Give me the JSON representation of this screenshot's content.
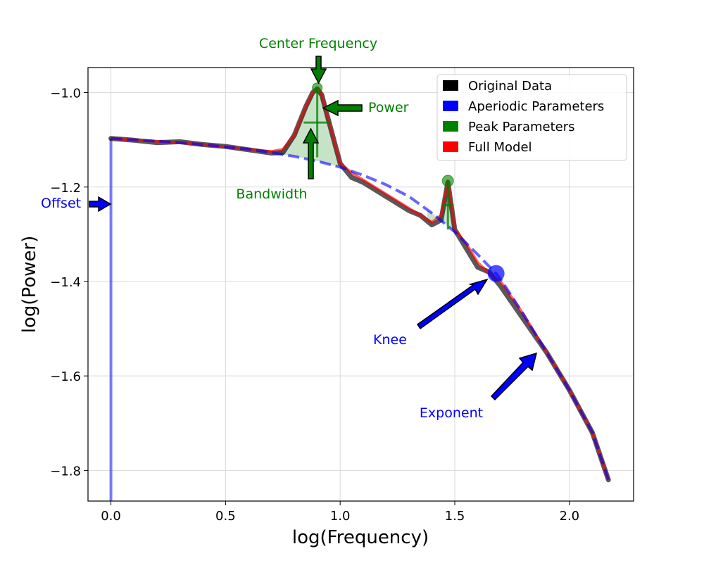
{
  "chart_data": {
    "type": "line",
    "xlabel": "log(Frequency)",
    "ylabel": "log(Power)",
    "xlim": [
      -0.1,
      2.28
    ],
    "ylim": [
      -1.865,
      -0.947
    ],
    "x_ticks": [
      0.0,
      0.5,
      1.0,
      1.5,
      2.0
    ],
    "y_ticks": [
      -1.0,
      -1.2,
      -1.4,
      -1.6,
      -1.8
    ],
    "x_tick_labels": [
      "0.0",
      "0.5",
      "1.0",
      "1.5",
      "2.0"
    ],
    "y_tick_labels": [
      "−1.0",
      "−1.2",
      "−1.4",
      "−1.6",
      "−1.8"
    ],
    "grid": true,
    "legend_position": "top-right",
    "legend": [
      {
        "label": "Original Data",
        "color": "#000000"
      },
      {
        "label": "Aperiodic Parameters",
        "color": "#0000ff"
      },
      {
        "label": "Peak Parameters",
        "color": "#008000"
      },
      {
        "label": "Full Model",
        "color": "#ff0000"
      }
    ],
    "aperiodic": {
      "offset": -1.097,
      "knee_log_freq": 1.68,
      "knee_value": -1.383,
      "exponent_label_point": [
        1.87,
        -1.545
      ]
    },
    "peaks": [
      {
        "center": 0.9,
        "peak_power": -0.99,
        "base_power": -1.137,
        "bandwidth_half": 0.07
      },
      {
        "center": 1.47,
        "peak_power": -1.187,
        "base_power": -1.29,
        "bandwidth_half": 0.03
      }
    ],
    "series": [
      {
        "name": "Original Data",
        "x": [
          0.0,
          0.1,
          0.2,
          0.3,
          0.4,
          0.5,
          0.6,
          0.7,
          0.75,
          0.8,
          0.85,
          0.88,
          0.9,
          0.92,
          0.95,
          1.0,
          1.05,
          1.1,
          1.2,
          1.3,
          1.35,
          1.4,
          1.44,
          1.47,
          1.5,
          1.55,
          1.6,
          1.65,
          1.7,
          1.8,
          1.9,
          2.0,
          2.1,
          2.17
        ],
        "y": [
          -1.097,
          -1.101,
          -1.106,
          -1.104,
          -1.11,
          -1.114,
          -1.121,
          -1.128,
          -1.127,
          -1.09,
          -1.03,
          -1.0,
          -0.992,
          -1.005,
          -1.06,
          -1.15,
          -1.18,
          -1.19,
          -1.22,
          -1.25,
          -1.26,
          -1.28,
          -1.27,
          -1.19,
          -1.29,
          -1.33,
          -1.37,
          -1.38,
          -1.41,
          -1.48,
          -1.55,
          -1.63,
          -1.72,
          -1.82
        ]
      },
      {
        "name": "Aperiodic Parameters",
        "x": [
          0.0,
          0.1,
          0.2,
          0.3,
          0.4,
          0.5,
          0.6,
          0.7,
          0.8,
          0.9,
          1.0,
          1.1,
          1.2,
          1.3,
          1.4,
          1.5,
          1.6,
          1.68,
          1.7,
          1.8,
          1.9,
          2.0,
          2.1,
          2.17
        ],
        "y": [
          -1.097,
          -1.1,
          -1.103,
          -1.106,
          -1.11,
          -1.115,
          -1.12,
          -1.127,
          -1.135,
          -1.145,
          -1.158,
          -1.175,
          -1.195,
          -1.22,
          -1.255,
          -1.295,
          -1.343,
          -1.383,
          -1.395,
          -1.47,
          -1.55,
          -1.63,
          -1.72,
          -1.82
        ]
      },
      {
        "name": "Full Model",
        "x": [
          0.0,
          0.1,
          0.2,
          0.3,
          0.4,
          0.5,
          0.6,
          0.7,
          0.75,
          0.8,
          0.85,
          0.88,
          0.9,
          0.92,
          0.95,
          1.0,
          1.05,
          1.1,
          1.2,
          1.3,
          1.35,
          1.4,
          1.44,
          1.47,
          1.5,
          1.55,
          1.6,
          1.65,
          1.7,
          1.8,
          1.9,
          2.0,
          2.1,
          2.17
        ],
        "y": [
          -1.097,
          -1.1,
          -1.103,
          -1.106,
          -1.11,
          -1.115,
          -1.12,
          -1.125,
          -1.12,
          -1.09,
          -1.03,
          -1.0,
          -0.99,
          -1.005,
          -1.06,
          -1.15,
          -1.17,
          -1.185,
          -1.215,
          -1.245,
          -1.26,
          -1.275,
          -1.26,
          -1.187,
          -1.29,
          -1.32,
          -1.36,
          -1.383,
          -1.4,
          -1.47,
          -1.55,
          -1.63,
          -1.72,
          -1.82
        ]
      }
    ],
    "annotations": [
      {
        "key": "center_frequency",
        "text": "Center Frequency",
        "color": "#008000"
      },
      {
        "key": "power",
        "text": "Power",
        "color": "#008000"
      },
      {
        "key": "bandwidth",
        "text": "Bandwidth",
        "color": "#008000"
      },
      {
        "key": "offset",
        "text": "Offset",
        "color": "#0000ff"
      },
      {
        "key": "knee",
        "text": "Knee",
        "color": "#0000ff"
      },
      {
        "key": "exponent",
        "text": "Exponent",
        "color": "#0000ff"
      }
    ]
  }
}
